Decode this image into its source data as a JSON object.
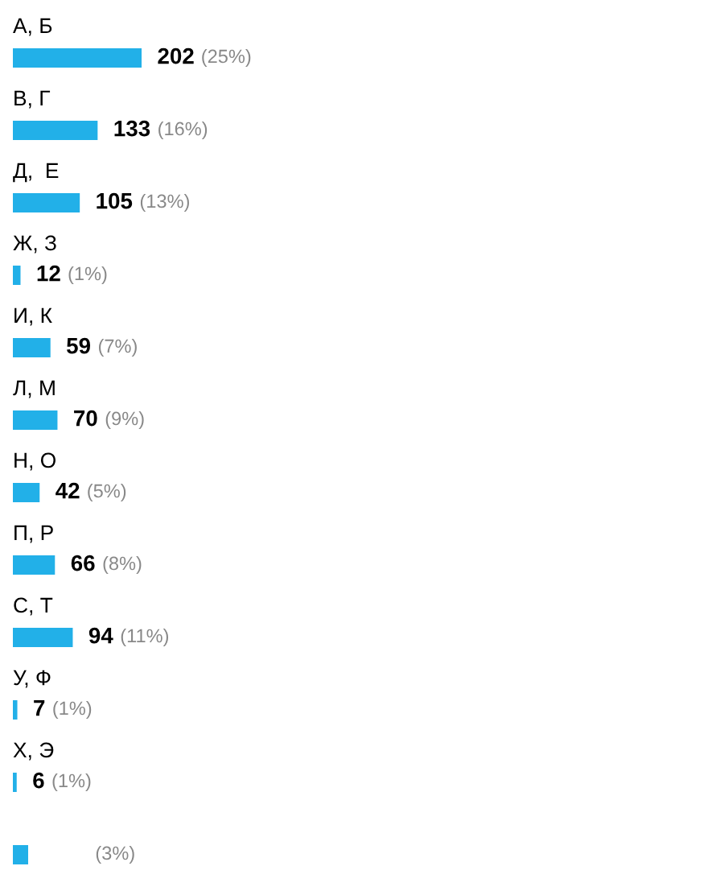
{
  "chart_data": {
    "type": "bar",
    "orientation": "horizontal",
    "categories": [
      "А, Б",
      "В, Г",
      "Д,  Е",
      "Ж, З",
      "И, К",
      "Л, М",
      "Н, О",
      "П, Р",
      "С, Т",
      "У, Ф",
      "Х, Э",
      null
    ],
    "values": [
      202,
      133,
      105,
      12,
      59,
      70,
      42,
      66,
      94,
      7,
      6,
      24
    ],
    "value_labels": [
      "202 (25%)",
      "133 (16%)",
      "105 (13%)",
      "12 (1%)",
      "59 (7%)",
      "70 (9%)",
      "42 (5%)",
      "66 (8%)",
      "94 (11%)",
      "7 (1%)",
      "6 (1%)",
      null
    ],
    "annotations": [
      "(3%)"
    ],
    "color": "#22b0e8"
  }
}
